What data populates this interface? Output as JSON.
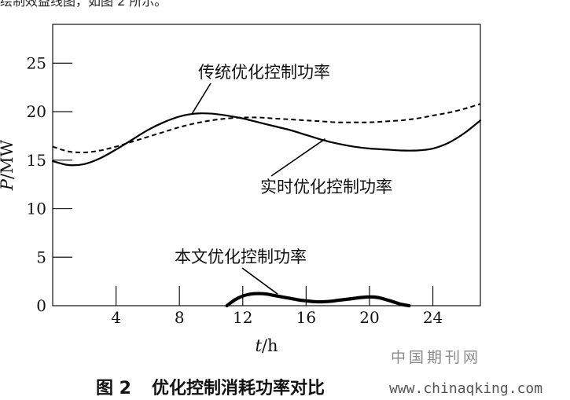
{
  "top_text": "绘制效益线图，如图 2 所示。",
  "caption": {
    "figure_number": "图 2",
    "title": "优化控制消耗功率对比"
  },
  "watermark": {
    "cn": "中国期刊网",
    "url": "www.chinaqking.com"
  },
  "chart_data": {
    "type": "line",
    "title": "",
    "xlabel": "t",
    "xlabel_unit": "/h",
    "ylabel": "P",
    "ylabel_unit": "/MW",
    "xlim": [
      0,
      27
    ],
    "ylim": [
      0,
      29
    ],
    "x_ticks": [
      4,
      8,
      12,
      16,
      20,
      24
    ],
    "y_ticks": [
      0,
      5,
      10,
      15,
      20,
      25
    ],
    "grid": false,
    "series": [
      {
        "name": "传统优化控制功率",
        "style": "solid",
        "x": [
          0,
          1,
          2,
          3,
          4,
          5,
          6,
          7,
          8,
          9,
          10,
          11,
          12,
          13,
          14,
          15,
          16,
          17,
          18,
          19,
          20,
          21,
          22,
          23,
          24,
          25,
          26,
          27
        ],
        "y": [
          14.9,
          14.5,
          14.6,
          15.2,
          16.1,
          17.1,
          18.1,
          18.9,
          19.5,
          19.8,
          19.8,
          19.6,
          19.3,
          18.9,
          18.5,
          18.1,
          17.6,
          17.1,
          16.7,
          16.4,
          16.2,
          16.1,
          16.0,
          16.0,
          16.2,
          16.8,
          17.8,
          19.1
        ]
      },
      {
        "name": "实时优化控制功率",
        "style": "dashed",
        "x": [
          0,
          1,
          2,
          3,
          4,
          5,
          6,
          7,
          8,
          9,
          10,
          11,
          12,
          13,
          14,
          15,
          16,
          17,
          18,
          19,
          20,
          21,
          22,
          23,
          24,
          25,
          26,
          27
        ],
        "y": [
          16.4,
          15.9,
          15.8,
          16.0,
          16.4,
          16.9,
          17.4,
          17.9,
          18.4,
          18.8,
          19.1,
          19.3,
          19.4,
          19.4,
          19.3,
          19.2,
          19.1,
          19.0,
          18.9,
          18.9,
          18.9,
          19.0,
          19.1,
          19.3,
          19.6,
          19.9,
          20.3,
          20.8
        ]
      },
      {
        "name": "本文优化控制功率",
        "style": "solid-bold",
        "x": [
          11,
          11.5,
          12,
          12.5,
          13,
          13.5,
          14,
          14.5,
          15,
          15.5,
          16,
          16.5,
          17,
          17.5,
          18,
          18.5,
          19,
          19.5,
          20,
          20.5,
          21,
          21.5,
          22,
          22.5
        ],
        "y": [
          0.0,
          0.6,
          1.0,
          1.2,
          1.25,
          1.2,
          1.05,
          0.9,
          0.75,
          0.6,
          0.5,
          0.42,
          0.4,
          0.45,
          0.55,
          0.65,
          0.75,
          0.85,
          0.9,
          0.85,
          0.65,
          0.4,
          0.15,
          0.0
        ]
      }
    ],
    "annotations": [
      {
        "text": "传统优化控制功率",
        "series": 0,
        "point": [
          8.8,
          19.8
        ]
      },
      {
        "text": "实时优化控制功率",
        "series": 1,
        "point": [
          17.2,
          17.2
        ]
      },
      {
        "text": "本文优化控制功率",
        "series": 2,
        "point": [
          14.2,
          1.2
        ]
      }
    ]
  }
}
